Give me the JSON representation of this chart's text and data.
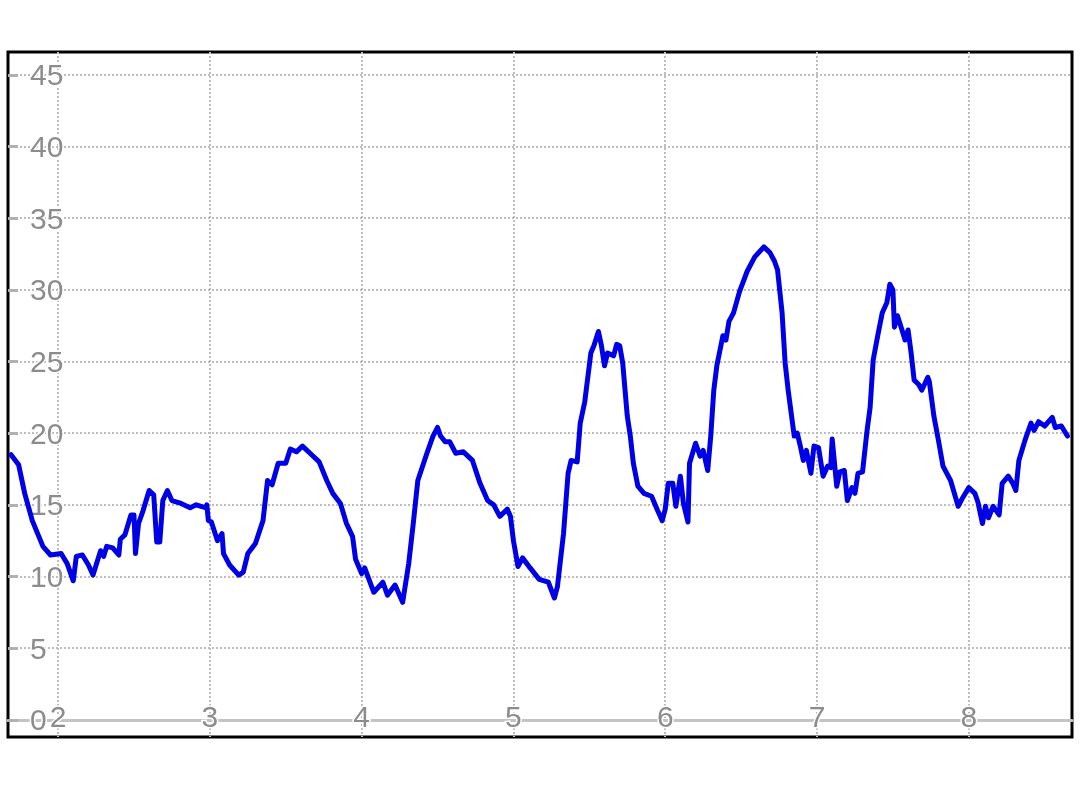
{
  "chart_data": {
    "type": "line",
    "x": [
      1.69,
      1.74,
      1.78,
      1.83,
      1.9,
      1.95,
      2.02,
      2.06,
      2.1,
      2.12,
      2.16,
      2.2,
      2.23,
      2.28,
      2.3,
      2.32,
      2.36,
      2.4,
      2.41,
      2.44,
      2.46,
      2.48,
      2.5,
      2.51,
      2.53,
      2.56,
      2.6,
      2.63,
      2.65,
      2.67,
      2.69,
      2.72,
      2.75,
      2.81,
      2.87,
      2.91,
      2.97,
      2.98,
      2.99,
      3.01,
      3.05,
      3.08,
      3.09,
      3.13,
      3.19,
      3.22,
      3.25,
      3.3,
      3.35,
      3.38,
      3.41,
      3.45,
      3.5,
      3.53,
      3.57,
      3.61,
      3.66,
      3.72,
      3.77,
      3.81,
      3.86,
      3.9,
      3.94,
      3.96,
      4.0,
      4.02,
      4.08,
      4.14,
      4.17,
      4.22,
      4.27,
      4.31,
      4.34,
      4.37,
      4.43,
      4.47,
      4.5,
      4.52,
      4.55,
      4.58,
      4.62,
      4.67,
      4.73,
      4.78,
      4.83,
      4.87,
      4.91,
      4.96,
      4.98,
      5.0,
      5.03,
      5.06,
      5.11,
      5.17,
      5.23,
      5.27,
      5.29,
      5.33,
      5.36,
      5.38,
      5.42,
      5.44,
      5.47,
      5.51,
      5.53,
      5.56,
      5.58,
      5.6,
      5.62,
      5.66,
      5.68,
      5.7,
      5.72,
      5.75,
      5.77,
      5.79,
      5.82,
      5.86,
      5.91,
      5.95,
      5.98,
      6.0,
      6.02,
      6.05,
      6.07,
      6.1,
      6.12,
      6.15,
      6.16,
      6.2,
      6.23,
      6.25,
      6.28,
      6.3,
      6.32,
      6.34,
      6.38,
      6.4,
      6.42,
      6.45,
      6.49,
      6.54,
      6.59,
      6.65,
      6.69,
      6.72,
      6.74,
      6.77,
      6.79,
      6.81,
      6.85,
      6.87,
      6.89,
      6.91,
      6.93,
      6.96,
      6.98,
      7.01,
      7.04,
      7.07,
      7.09,
      7.1,
      7.13,
      7.15,
      7.18,
      7.2,
      7.23,
      7.25,
      7.27,
      7.3,
      7.33,
      7.35,
      7.37,
      7.4,
      7.43,
      7.46,
      7.48,
      7.5,
      7.51,
      7.53,
      7.56,
      7.58,
      7.6,
      7.62,
      7.64,
      7.67,
      7.69,
      7.73,
      7.74,
      7.77,
      7.8,
      7.83,
      7.88,
      7.93,
      7.96,
      8.0,
      8.04,
      8.06,
      8.09,
      8.11,
      8.13,
      8.16,
      8.2,
      8.22,
      8.26,
      8.29,
      8.31,
      8.33,
      8.37,
      8.41,
      8.43,
      8.46,
      8.5,
      8.55,
      8.57,
      8.61,
      8.65
    ],
    "series": [
      {
        "color": "#0000e6",
        "values": [
          18.5,
          17.8,
          15.8,
          13.9,
          12.1,
          11.5,
          11.6,
          10.9,
          9.7,
          11.4,
          11.5,
          10.8,
          10.1,
          11.8,
          11.4,
          12.1,
          12.0,
          11.5,
          12.6,
          12.9,
          13.6,
          14.3,
          14.3,
          11.6,
          13.7,
          14.6,
          16.0,
          15.7,
          12.4,
          12.4,
          15.3,
          16.0,
          15.3,
          15.1,
          14.8,
          15.0,
          14.8,
          15.0,
          13.9,
          13.8,
          12.5,
          13.0,
          11.6,
          10.8,
          10.1,
          10.3,
          11.6,
          12.3,
          13.9,
          16.7,
          16.4,
          17.9,
          17.9,
          18.9,
          18.7,
          19.1,
          18.6,
          18.0,
          16.7,
          15.8,
          15.1,
          13.7,
          12.8,
          11.2,
          10.2,
          10.6,
          8.9,
          9.6,
          8.7,
          9.4,
          8.2,
          10.9,
          13.7,
          16.7,
          18.6,
          19.8,
          20.4,
          19.8,
          19.4,
          19.4,
          18.6,
          18.7,
          18.1,
          16.5,
          15.3,
          15.0,
          14.2,
          14.7,
          14.2,
          12.5,
          10.7,
          11.3,
          10.6,
          9.8,
          9.6,
          8.5,
          9.3,
          13.0,
          17.2,
          18.1,
          18.0,
          20.7,
          22.2,
          25.6,
          26.1,
          27.1,
          26.1,
          24.7,
          25.6,
          25.4,
          26.2,
          26.1,
          24.9,
          21.2,
          19.8,
          17.9,
          16.3,
          15.8,
          15.6,
          14.6,
          13.9,
          14.7,
          16.5,
          16.5,
          14.9,
          17.0,
          15.1,
          13.8,
          17.9,
          19.3,
          18.4,
          18.8,
          17.4,
          19.8,
          23.0,
          24.7,
          26.8,
          26.5,
          27.8,
          28.4,
          29.9,
          31.3,
          32.3,
          33.0,
          32.6,
          32.0,
          31.4,
          28.4,
          24.9,
          23.0,
          19.8,
          20.0,
          19.1,
          18.1,
          18.8,
          17.2,
          19.1,
          19.0,
          17.0,
          17.7,
          17.6,
          19.6,
          16.3,
          17.3,
          17.4,
          15.3,
          16.2,
          15.8,
          17.2,
          17.3,
          20.2,
          21.8,
          25.1,
          26.8,
          28.4,
          29.1,
          30.4,
          30.0,
          27.4,
          28.2,
          27.2,
          26.5,
          27.2,
          25.6,
          23.7,
          23.4,
          23.0,
          23.9,
          23.6,
          21.2,
          19.5,
          17.7,
          16.7,
          14.9,
          15.5,
          16.2,
          15.8,
          15.2,
          13.7,
          14.9,
          14.1,
          14.9,
          14.3,
          16.5,
          17.0,
          16.5,
          16.0,
          18.1,
          19.5,
          20.7,
          20.2,
          20.8,
          20.5,
          21.1,
          20.4,
          20.5,
          19.8
        ]
      }
    ],
    "xlim": [
      1.67,
      8.68
    ],
    "xticks": [
      2,
      3,
      4,
      5,
      6,
      7,
      8
    ],
    "ylim": [
      -1.2,
      46.6
    ],
    "yticks": [
      0,
      5,
      10,
      15,
      20,
      25,
      30,
      35,
      40,
      45
    ],
    "grid": true,
    "marker": "none",
    "line_style": "solid"
  }
}
